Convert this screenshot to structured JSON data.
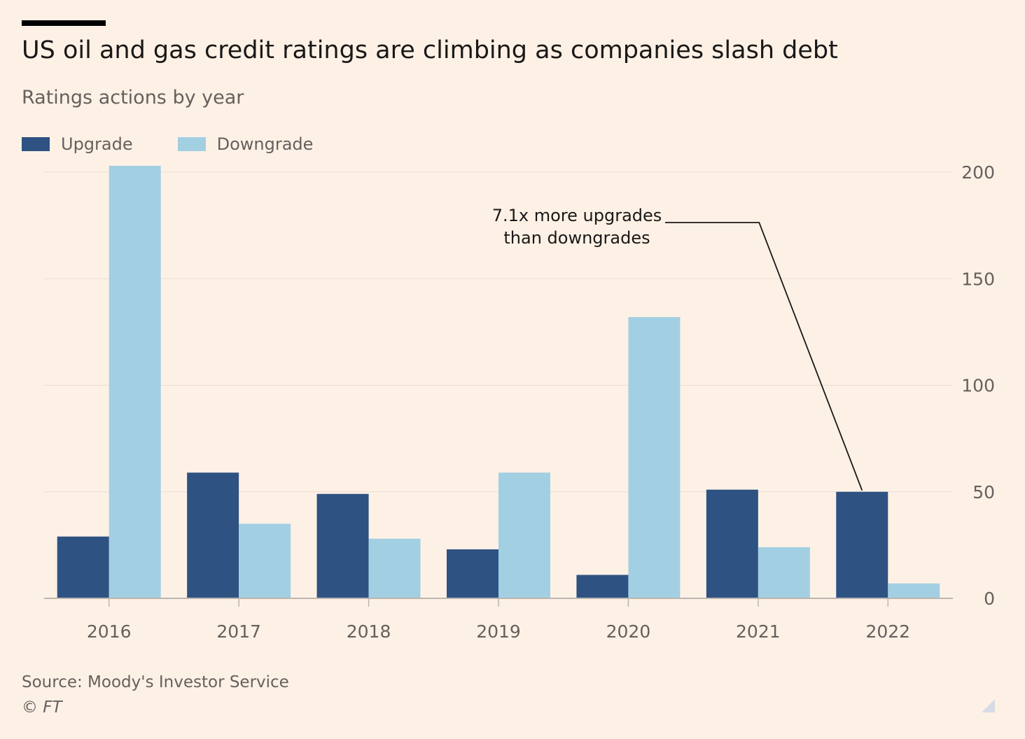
{
  "chart_data": {
    "type": "bar",
    "title": "US oil and gas credit ratings are climbing as companies slash debt",
    "subtitle": "Ratings actions by year",
    "categories": [
      "2016",
      "2017",
      "2018",
      "2019",
      "2020",
      "2021",
      "2022"
    ],
    "series": [
      {
        "name": "Upgrade",
        "color": "#2e5281",
        "values": [
          29,
          59,
          49,
          23,
          11,
          51,
          50
        ]
      },
      {
        "name": "Downgrade",
        "color": "#a3cfe3",
        "values": [
          203,
          35,
          28,
          59,
          132,
          24,
          7
        ]
      }
    ],
    "ylim": [
      0,
      200
    ],
    "yticks": [
      0,
      50,
      100,
      150,
      200
    ],
    "ytick_labels": [
      "0",
      "50",
      "100",
      "150",
      "200"
    ],
    "y_axis_side": "right",
    "grid": true,
    "legend_position": "top-left",
    "annotation": {
      "lines": [
        "7.1x more upgrades",
        "than downgrades"
      ],
      "target_category": "2022",
      "target_series": "Upgrade"
    },
    "colors": {
      "background": "#fdf1e6",
      "grid": "#e9ddd3",
      "axis": "#bdb6b0",
      "tick_text": "#66605c"
    }
  },
  "footer": {
    "source": "Source: Moody's Investor Service",
    "copyright": "© FT"
  }
}
